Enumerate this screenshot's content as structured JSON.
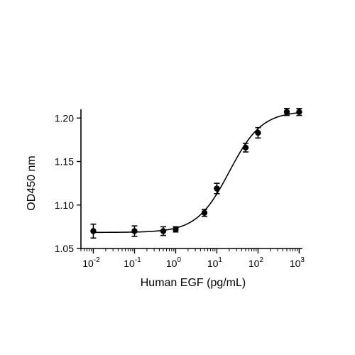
{
  "chart_data": {
    "type": "scatter",
    "xlabel": "Human EGF (pg/mL)",
    "ylabel": "OD450 nm",
    "x_scale": "log",
    "xlim": [
      0.005,
      1200
    ],
    "ylim": [
      1.05,
      1.21
    ],
    "x_ticks": [
      {
        "base": "10",
        "exp": "-2",
        "value": 0.01
      },
      {
        "base": "10",
        "exp": "-1",
        "value": 0.1
      },
      {
        "base": "10",
        "exp": "0",
        "value": 1
      },
      {
        "base": "10",
        "exp": "1",
        "value": 10
      },
      {
        "base": "10",
        "exp": "2",
        "value": 100
      },
      {
        "base": "10",
        "exp": "3",
        "value": 1000
      }
    ],
    "y_ticks": [
      "1.05",
      "1.10",
      "1.15",
      "1.20"
    ],
    "grid": false,
    "legend": "none",
    "fit": {
      "bottom": 1.0685,
      "top": 1.208,
      "ec50": 20,
      "hill": 1.1
    },
    "series": [
      {
        "x": [
          0.01,
          0.1,
          0.5,
          1,
          5,
          10,
          50,
          100,
          500,
          1000
        ],
        "y": [
          1.07,
          1.07,
          1.07,
          1.072,
          1.091,
          1.119,
          1.166,
          1.183,
          1.207,
          1.207
        ],
        "err": [
          0.008,
          0.006,
          0.005,
          0.003,
          0.004,
          0.006,
          0.005,
          0.006,
          0.004,
          0.004
        ]
      }
    ]
  }
}
